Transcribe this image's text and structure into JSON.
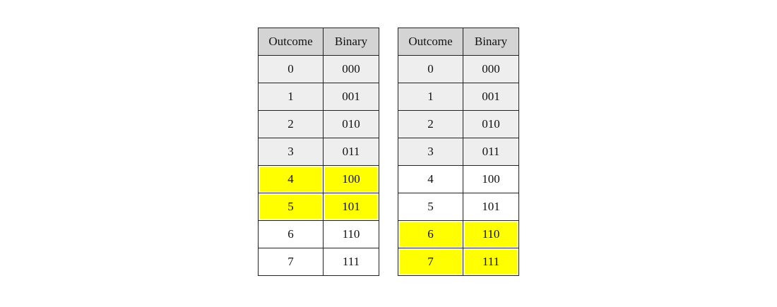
{
  "tables": [
    {
      "headers": [
        "Outcome",
        "Binary"
      ],
      "rows": [
        {
          "outcome": "0",
          "binary": "000",
          "style": "gray"
        },
        {
          "outcome": "1",
          "binary": "001",
          "style": "gray"
        },
        {
          "outcome": "2",
          "binary": "010",
          "style": "gray"
        },
        {
          "outcome": "3",
          "binary": "011",
          "style": "gray"
        },
        {
          "outcome": "4",
          "binary": "100",
          "style": "highlight"
        },
        {
          "outcome": "5",
          "binary": "101",
          "style": "highlight"
        },
        {
          "outcome": "6",
          "binary": "110",
          "style": "white"
        },
        {
          "outcome": "7",
          "binary": "111",
          "style": "white"
        }
      ]
    },
    {
      "headers": [
        "Outcome",
        "Binary"
      ],
      "rows": [
        {
          "outcome": "0",
          "binary": "000",
          "style": "gray"
        },
        {
          "outcome": "1",
          "binary": "001",
          "style": "gray"
        },
        {
          "outcome": "2",
          "binary": "010",
          "style": "gray"
        },
        {
          "outcome": "3",
          "binary": "011",
          "style": "gray"
        },
        {
          "outcome": "4",
          "binary": "100",
          "style": "white"
        },
        {
          "outcome": "5",
          "binary": "101",
          "style": "white"
        },
        {
          "outcome": "6",
          "binary": "110",
          "style": "highlight"
        },
        {
          "outcome": "7",
          "binary": "111",
          "style": "highlight"
        }
      ]
    }
  ],
  "colors": {
    "header": "#d4d4d4",
    "gray_row": "#eeeeee",
    "highlight": "#ffff00"
  }
}
